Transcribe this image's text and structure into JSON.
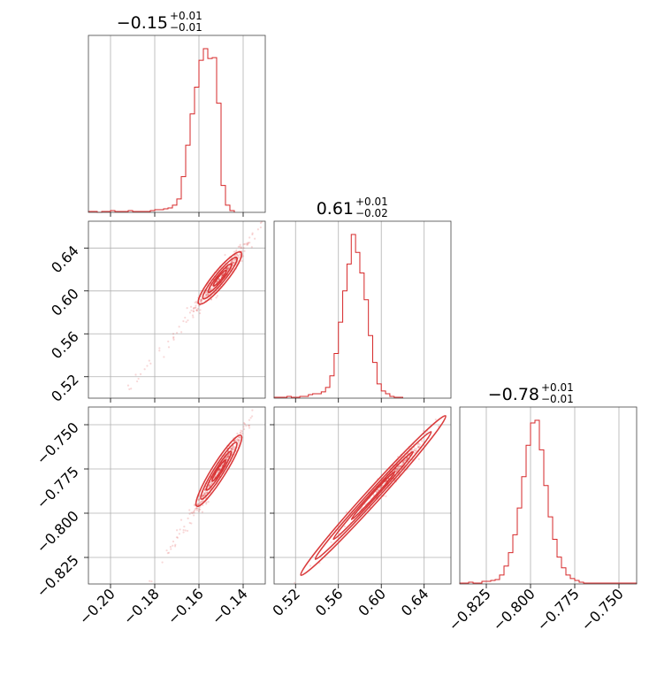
{
  "chart_data": {
    "type": "corner",
    "titles": [
      {
        "value": "−0.15",
        "plus": "+0.01",
        "minus": "−0.01"
      },
      {
        "value": "0.61",
        "plus": "+0.01",
        "minus": "−0.02"
      },
      {
        "value": "−0.78",
        "plus": "+0.01",
        "minus": "−0.01"
      }
    ],
    "parameters": [
      {
        "range": [
          -0.21,
          -0.13
        ],
        "ticks": [
          -0.2,
          -0.18,
          -0.16,
          -0.14
        ],
        "tick_labels": [
          "−0.20",
          "−0.18",
          "−0.16",
          "−0.14"
        ],
        "median": -0.15,
        "hist": {
          "edges_start": -0.21,
          "bin_width": 0.002,
          "counts": [
            1,
            1,
            0,
            1,
            1,
            2,
            1,
            1,
            1,
            2,
            1,
            1,
            1,
            1,
            2,
            3,
            3,
            4,
            5,
            8,
            15,
            40,
            75,
            110,
            140,
            170,
            183,
            172,
            173,
            122,
            30,
            8,
            2
          ]
        }
      },
      {
        "range": [
          0.5,
          0.665
        ],
        "ticks": [
          0.52,
          0.56,
          0.6,
          0.64
        ],
        "tick_labels": [
          "0.52",
          "0.56",
          "0.60",
          "0.64"
        ],
        "median": 0.612,
        "hist": {
          "edges_start": 0.5,
          "bin_width": 0.004,
          "counts": [
            1,
            1,
            1,
            2,
            1,
            1,
            2,
            2,
            4,
            5,
            5,
            7,
            12,
            25,
            50,
            85,
            120,
            150,
            183,
            163,
            140,
            110,
            70,
            40,
            16,
            8,
            5,
            2,
            1,
            1
          ]
        }
      },
      {
        "range": [
          -0.84,
          -0.74
        ],
        "ticks": [
          -0.825,
          -0.8,
          -0.775,
          -0.75
        ],
        "tick_labels": [
          "−0.825",
          "−0.800",
          "−0.775",
          "−0.750"
        ],
        "median": -0.778,
        "hist": {
          "edges_start": -0.84,
          "bin_width": 0.0025,
          "counts": [
            1,
            1,
            2,
            1,
            1,
            3,
            3,
            4,
            5,
            10,
            20,
            35,
            55,
            85,
            120,
            155,
            180,
            183,
            150,
            110,
            75,
            50,
            30,
            18,
            10,
            6,
            4,
            2,
            1,
            1,
            1,
            1,
            1,
            1,
            1,
            1,
            1,
            1,
            1,
            1
          ]
        }
      }
    ],
    "contours": {
      "1_0": {
        "x": [
          -0.142,
          -0.156,
          -0.16,
          -0.146,
          -0.141
        ],
        "y": [
          0.637,
          0.605,
          0.588,
          0.622,
          0.636
        ]
      },
      "2_0": {
        "x": [
          -0.142,
          -0.155,
          -0.161,
          -0.147,
          -0.141
        ],
        "y": [
          -0.757,
          -0.78,
          -0.796,
          -0.77,
          -0.756
        ]
      },
      "2_1": {
        "x": [
          0.525,
          0.6,
          0.64,
          0.66
        ],
        "y": [
          -0.835,
          -0.79,
          -0.765,
          -0.745
        ]
      }
    },
    "grid": true,
    "color": "#d62728"
  }
}
